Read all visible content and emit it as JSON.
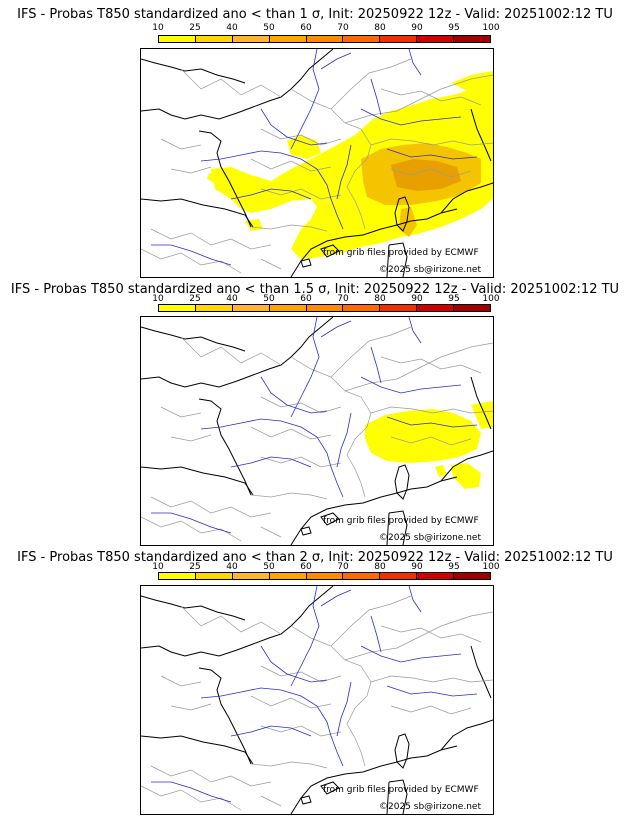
{
  "colorbar": {
    "ticks": [
      "10",
      "25",
      "40",
      "50",
      "60",
      "70",
      "80",
      "90",
      "95",
      "100"
    ],
    "colors": [
      "#ffff00",
      "#ffd700",
      "#ffb52e",
      "#ffa500",
      "#ff8c00",
      "#ff6a00",
      "#f03000",
      "#d00000",
      "#a00000",
      "#6a0000"
    ]
  },
  "colors": {
    "probability_low": "#ffff00",
    "probability_mid": "#f5c400",
    "probability_high": "#e8a000",
    "rivers": "#2b2bd4",
    "borders": "#8c8c8c",
    "coastline": "#000000"
  },
  "panels": [
    {
      "title": "IFS - Probas T850  standardized ano < than 1 σ, Init: 20250922 12z - Valid: 20251002:12 TU",
      "credit_line1": "from grib files provided by ECMWF",
      "credit_line2": "©2025 sb@irizone.net"
    },
    {
      "title": "IFS - Probas T850  standardized ano < than 1.5 σ, Init: 20250922 12z - Valid: 20251002:12 TU",
      "credit_line1": "from grib files provided by ECMWF",
      "credit_line2": "©2025 sb@irizone.net"
    },
    {
      "title": "IFS - Probas T850  standardized ano < than 2 σ, Init: 20250922 12z - Valid: 20251002:12 TU",
      "credit_line1": "from grib files provided by ECMWF",
      "credit_line2": "©2025 sb@irizone.net"
    }
  ]
}
